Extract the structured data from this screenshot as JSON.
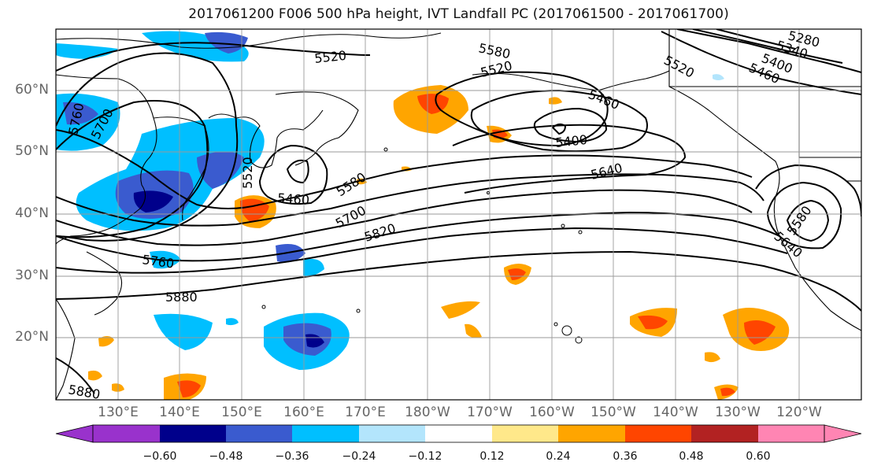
{
  "title": "2017061200 F006 500 hPa height, IVT Landfall PC (2017061500 - 2017061700)",
  "map": {
    "lat_labels": [
      "60°N",
      "50°N",
      "40°N",
      "30°N",
      "20°N"
    ],
    "lon_labels": [
      "130°E",
      "140°E",
      "150°E",
      "160°E",
      "170°E",
      "180°W",
      "170°W",
      "160°W",
      "150°W",
      "140°W",
      "130°W",
      "120°W"
    ],
    "contour_labels": [
      "5520",
      "5580",
      "5520",
      "5460",
      "5400",
      "5640",
      "5580",
      "5700",
      "5820",
      "5760",
      "5880",
      "5460",
      "5520",
      "5760",
      "5700",
      "5280",
      "5340",
      "5400",
      "5460",
      "5520",
      "5640",
      "5580",
      "5880"
    ]
  },
  "colorbar": {
    "ticks": [
      "−0.60",
      "−0.48",
      "−0.36",
      "−0.24",
      "−0.12",
      "0.12",
      "0.24",
      "0.36",
      "0.48",
      "0.60"
    ],
    "colors": [
      "#9932cc",
      "#00008b",
      "#3a5bcf",
      "#00bfff",
      "#b3e5fc",
      "#ffffff",
      "#ffe88a",
      "#ffa500",
      "#ff4500",
      "#b22222",
      "#ff85b3"
    ]
  }
}
